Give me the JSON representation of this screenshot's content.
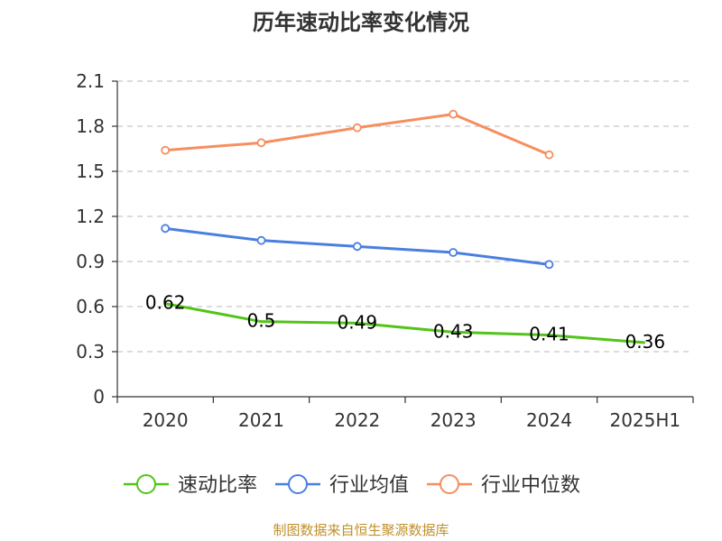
{
  "chart_data": {
    "type": "line",
    "title": "历年速动比率变化情况",
    "xlabel": "",
    "ylabel": "",
    "categories": [
      "2020",
      "2021",
      "2022",
      "2023",
      "2024",
      "2025H1"
    ],
    "y_ticks": [
      "0",
      "0.3",
      "0.6",
      "0.9",
      "1.2",
      "1.5",
      "1.8",
      "2.1"
    ],
    "ylim": [
      0,
      2.1
    ],
    "grid": "horizontal dashed",
    "legend_position": "bottom",
    "series": [
      {
        "name": "速动比率",
        "color": "#52c41a",
        "values": [
          0.62,
          0.5,
          0.49,
          0.43,
          0.41,
          0.36
        ],
        "labels": [
          "0.62",
          "0.5",
          "0.49",
          "0.43",
          "0.41",
          "0.36"
        ]
      },
      {
        "name": "行业均值",
        "color": "#4a7fe0",
        "values": [
          1.12,
          1.04,
          1.0,
          0.96,
          0.88,
          null
        ]
      },
      {
        "name": "行业中位数",
        "color": "#f68e5f",
        "values": [
          1.64,
          1.69,
          1.79,
          1.88,
          1.61,
          null
        ]
      }
    ]
  },
  "source_text": "制图数据来自恒生聚源数据库"
}
